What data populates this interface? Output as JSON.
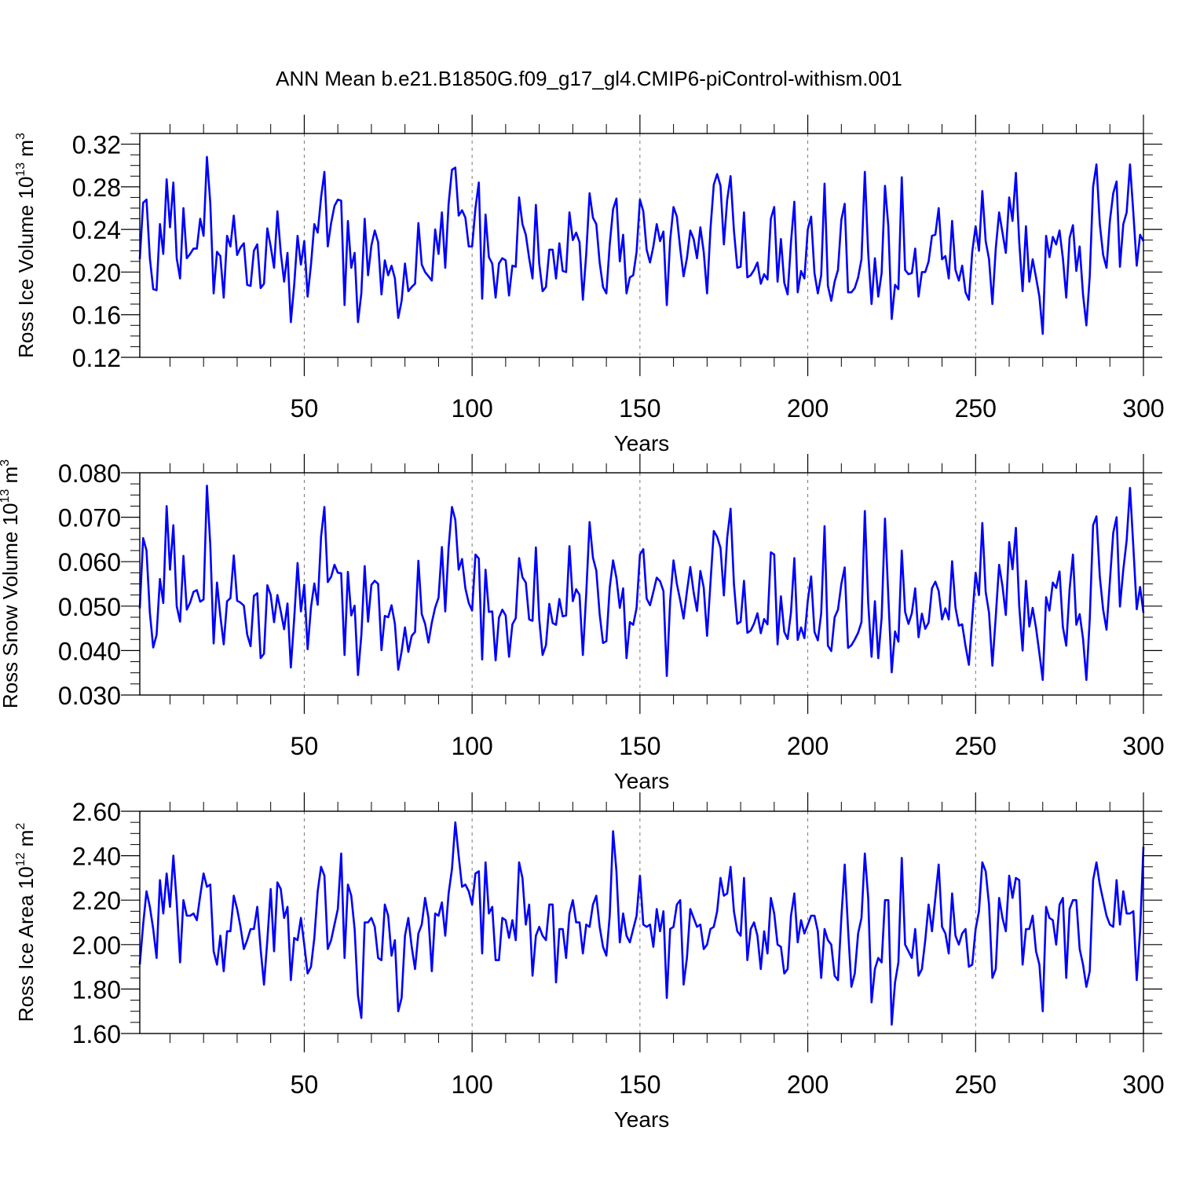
{
  "title": "ANN Mean b.e21.B1850G.f09_g17_gl4.CMIP6-piControl-withism.001",
  "chart_data": [
    {
      "type": "line",
      "xlabel": "Years",
      "ylabel_main": "Ross Ice Volume 10",
      "ylabel_exp": "13",
      "ylabel_unit": "m",
      "ylabel_unit_exp": "3",
      "xlim": [
        1,
        300
      ],
      "ylim": [
        0.12,
        0.33
      ],
      "xticks": [
        50,
        100,
        150,
        200,
        250,
        300
      ],
      "xtick_labels": [
        "50",
        "100",
        "150",
        "200",
        "250",
        "300"
      ],
      "yticks": [
        0.12,
        0.16,
        0.2,
        0.24,
        0.28,
        0.32
      ],
      "ytick_labels": [
        "0.12",
        "0.16",
        "0.20",
        "0.24",
        "0.28",
        "0.32"
      ],
      "grid": "dashed vertical at 50-year intervals",
      "color": "#0000ff",
      "values": [
        0.212,
        0.265,
        0.268,
        0.213,
        0.184,
        0.183,
        0.245,
        0.217,
        0.287,
        0.242,
        0.284,
        0.213,
        0.194,
        0.26,
        0.213,
        0.217,
        0.222,
        0.222,
        0.25,
        0.234,
        0.308,
        0.265,
        0.18,
        0.219,
        0.215,
        0.176,
        0.234,
        0.224,
        0.253,
        0.216,
        0.223,
        0.227,
        0.188,
        0.187,
        0.22,
        0.226,
        0.185,
        0.189,
        0.241,
        0.224,
        0.204,
        0.257,
        0.218,
        0.191,
        0.218,
        0.153,
        0.188,
        0.234,
        0.207,
        0.229,
        0.177,
        0.207,
        0.245,
        0.237,
        0.27,
        0.294,
        0.224,
        0.246,
        0.262,
        0.268,
        0.267,
        0.169,
        0.248,
        0.204,
        0.218,
        0.153,
        0.18,
        0.25,
        0.197,
        0.225,
        0.239,
        0.228,
        0.179,
        0.211,
        0.197,
        0.206,
        0.194,
        0.157,
        0.173,
        0.208,
        0.182,
        0.186,
        0.189,
        0.246,
        0.207,
        0.2,
        0.196,
        0.192,
        0.24,
        0.217,
        0.256,
        0.204,
        0.264,
        0.296,
        0.298,
        0.253,
        0.258,
        0.251,
        0.224,
        0.224,
        0.26,
        0.284,
        0.175,
        0.254,
        0.214,
        0.208,
        0.176,
        0.208,
        0.213,
        0.211,
        0.178,
        0.206,
        0.205,
        0.27,
        0.245,
        0.235,
        0.213,
        0.194,
        0.263,
        0.208,
        0.182,
        0.186,
        0.221,
        0.221,
        0.194,
        0.227,
        0.201,
        0.2,
        0.256,
        0.23,
        0.237,
        0.228,
        0.174,
        0.217,
        0.274,
        0.251,
        0.245,
        0.209,
        0.186,
        0.18,
        0.226,
        0.259,
        0.269,
        0.21,
        0.235,
        0.18,
        0.195,
        0.197,
        0.219,
        0.268,
        0.257,
        0.221,
        0.209,
        0.224,
        0.245,
        0.229,
        0.238,
        0.169,
        0.23,
        0.261,
        0.252,
        0.222,
        0.196,
        0.213,
        0.239,
        0.231,
        0.213,
        0.242,
        0.219,
        0.18,
        0.24,
        0.282,
        0.292,
        0.281,
        0.226,
        0.268,
        0.29,
        0.239,
        0.204,
        0.205,
        0.256,
        0.195,
        0.197,
        0.202,
        0.209,
        0.189,
        0.198,
        0.193,
        0.25,
        0.261,
        0.191,
        0.231,
        0.19,
        0.179,
        0.228,
        0.266,
        0.181,
        0.201,
        0.194,
        0.24,
        0.252,
        0.199,
        0.18,
        0.197,
        0.283,
        0.187,
        0.173,
        0.191,
        0.202,
        0.249,
        0.264,
        0.181,
        0.181,
        0.185,
        0.195,
        0.212,
        0.294,
        0.218,
        0.17,
        0.213,
        0.177,
        0.199,
        0.281,
        0.243,
        0.156,
        0.188,
        0.184,
        0.289,
        0.202,
        0.198,
        0.199,
        0.222,
        0.177,
        0.2,
        0.2,
        0.21,
        0.234,
        0.235,
        0.26,
        0.212,
        0.215,
        0.194,
        0.248,
        0.202,
        0.192,
        0.206,
        0.181,
        0.174,
        0.219,
        0.243,
        0.22,
        0.276,
        0.229,
        0.212,
        0.17,
        0.222,
        0.256,
        0.237,
        0.218,
        0.27,
        0.248,
        0.293,
        0.228,
        0.182,
        0.243,
        0.191,
        0.212,
        0.195,
        0.177,
        0.142,
        0.234,
        0.214,
        0.233,
        0.226,
        0.239,
        0.213,
        0.176,
        0.232,
        0.244,
        0.201,
        0.224,
        0.179,
        0.15,
        0.196,
        0.28,
        0.301,
        0.245,
        0.216,
        0.204,
        0.248,
        0.274,
        0.285,
        0.205,
        0.245,
        0.256,
        0.301,
        0.255,
        0.206,
        0.235,
        0.229
      ]
    },
    {
      "type": "line",
      "xlabel": "Years",
      "ylabel_main": "Ross Snow Volume 10",
      "ylabel_exp": "13",
      "ylabel_unit": "m",
      "ylabel_unit_exp": "3",
      "xlim": [
        1,
        300
      ],
      "ylim": [
        0.03,
        0.08
      ],
      "xticks": [
        50,
        100,
        150,
        200,
        250,
        300
      ],
      "xtick_labels": [
        "50",
        "100",
        "150",
        "200",
        "250",
        "300"
      ],
      "yticks": [
        0.03,
        0.04,
        0.05,
        0.06,
        0.07,
        0.08
      ],
      "ytick_labels": [
        "0.030",
        "0.040",
        "0.050",
        "0.060",
        "0.070",
        "0.080"
      ],
      "grid": "dashed vertical at 50-year intervals",
      "color": "#0000ff",
      "values": [
        0.0495,
        0.0653,
        0.0625,
        0.0485,
        0.0407,
        0.0435,
        0.0561,
        0.0507,
        0.0725,
        0.0582,
        0.0682,
        0.05,
        0.0465,
        0.0613,
        0.0492,
        0.0508,
        0.0532,
        0.0536,
        0.051,
        0.0515,
        0.0771,
        0.0638,
        0.0416,
        0.0553,
        0.0478,
        0.0414,
        0.0511,
        0.0518,
        0.0614,
        0.0512,
        0.0508,
        0.0501,
        0.0436,
        0.041,
        0.0523,
        0.0529,
        0.0383,
        0.0393,
        0.0547,
        0.0525,
        0.0464,
        0.0525,
        0.0488,
        0.0448,
        0.0506,
        0.0362,
        0.0472,
        0.0597,
        0.0488,
        0.0548,
        0.0403,
        0.0497,
        0.0551,
        0.0503,
        0.0656,
        0.0723,
        0.0554,
        0.0566,
        0.0593,
        0.0575,
        0.0574,
        0.039,
        0.0577,
        0.0479,
        0.0501,
        0.0345,
        0.0434,
        0.059,
        0.0465,
        0.0548,
        0.0557,
        0.055,
        0.0401,
        0.0478,
        0.0475,
        0.0502,
        0.046,
        0.0357,
        0.0398,
        0.0452,
        0.0397,
        0.0433,
        0.0442,
        0.0602,
        0.0482,
        0.046,
        0.0418,
        0.0463,
        0.0497,
        0.0519,
        0.0633,
        0.0488,
        0.0632,
        0.0723,
        0.0694,
        0.0582,
        0.0606,
        0.054,
        0.0507,
        0.049,
        0.0616,
        0.0607,
        0.038,
        0.0582,
        0.0487,
        0.0488,
        0.0378,
        0.0474,
        0.0492,
        0.0479,
        0.0386,
        0.0459,
        0.0473,
        0.0608,
        0.0565,
        0.0553,
        0.047,
        0.0467,
        0.0632,
        0.047,
        0.039,
        0.0412,
        0.0505,
        0.0462,
        0.0458,
        0.0516,
        0.0477,
        0.0479,
        0.0635,
        0.0511,
        0.0538,
        0.0525,
        0.039,
        0.0528,
        0.0689,
        0.0609,
        0.058,
        0.0482,
        0.0417,
        0.0421,
        0.0542,
        0.0603,
        0.0563,
        0.0496,
        0.054,
        0.0383,
        0.0464,
        0.0458,
        0.0496,
        0.0616,
        0.0628,
        0.0517,
        0.0502,
        0.0532,
        0.0564,
        0.0556,
        0.0534,
        0.0343,
        0.0512,
        0.0603,
        0.055,
        0.0513,
        0.0472,
        0.0533,
        0.0588,
        0.0531,
        0.0489,
        0.0579,
        0.0542,
        0.0433,
        0.0551,
        0.0669,
        0.0656,
        0.0631,
        0.0524,
        0.0654,
        0.0719,
        0.055,
        0.046,
        0.0465,
        0.0557,
        0.044,
        0.0445,
        0.0461,
        0.0484,
        0.0439,
        0.0471,
        0.0459,
        0.0621,
        0.0616,
        0.0414,
        0.0522,
        0.0442,
        0.0426,
        0.0486,
        0.0608,
        0.0424,
        0.0452,
        0.0428,
        0.0512,
        0.0567,
        0.0442,
        0.0423,
        0.0484,
        0.068,
        0.0411,
        0.0399,
        0.0475,
        0.0492,
        0.055,
        0.0587,
        0.0406,
        0.0412,
        0.0425,
        0.044,
        0.0464,
        0.0714,
        0.0508,
        0.0386,
        0.0511,
        0.0383,
        0.0474,
        0.0697,
        0.052,
        0.0351,
        0.0443,
        0.042,
        0.0625,
        0.0487,
        0.046,
        0.0484,
        0.054,
        0.043,
        0.0483,
        0.0449,
        0.0463,
        0.054,
        0.0555,
        0.0534,
        0.047,
        0.0495,
        0.047,
        0.0601,
        0.0497,
        0.0456,
        0.0459,
        0.041,
        0.0368,
        0.0472,
        0.0575,
        0.0525,
        0.0687,
        0.0532,
        0.0485,
        0.0366,
        0.0476,
        0.0593,
        0.0545,
        0.048,
        0.0644,
        0.0583,
        0.0676,
        0.0499,
        0.04,
        0.0557,
        0.0454,
        0.0496,
        0.0451,
        0.0394,
        0.0334,
        0.052,
        0.049,
        0.0553,
        0.0541,
        0.0578,
        0.0453,
        0.0411,
        0.0538,
        0.0616,
        0.0458,
        0.0482,
        0.0427,
        0.0334,
        0.047,
        0.0682,
        0.0702,
        0.0566,
        0.0492,
        0.0447,
        0.0556,
        0.0665,
        0.07,
        0.0499,
        0.0582,
        0.0648,
        0.0766,
        0.0632,
        0.0493,
        0.0543,
        0.0485
      ]
    },
    {
      "type": "line",
      "xlabel": "Years",
      "ylabel_main": "Ross Ice Area 10",
      "ylabel_exp": "12",
      "ylabel_unit": "m",
      "ylabel_unit_exp": "2",
      "xlim": [
        1,
        300
      ],
      "ylim": [
        1.6,
        2.6
      ],
      "xticks": [
        50,
        100,
        150,
        200,
        250,
        300
      ],
      "xtick_labels": [
        "50",
        "100",
        "150",
        "200",
        "250",
        "300"
      ],
      "yticks": [
        1.6,
        1.8,
        2.0,
        2.2,
        2.4,
        2.6
      ],
      "ytick_labels": [
        "1.60",
        "1.80",
        "2.00",
        "2.20",
        "2.40",
        "2.60"
      ],
      "grid": "dashed vertical at 50-year intervals",
      "color": "#0000ff",
      "values": [
        1.91,
        2.09,
        2.24,
        2.17,
        2.07,
        1.94,
        2.29,
        2.14,
        2.32,
        2.17,
        2.4,
        2.19,
        1.92,
        2.2,
        2.13,
        2.13,
        2.14,
        2.11,
        2.22,
        2.32,
        2.26,
        2.27,
        1.97,
        1.91,
        2.04,
        1.88,
        2.06,
        2.06,
        2.22,
        2.16,
        2.08,
        1.98,
        2.02,
        2.07,
        2.07,
        2.17,
        1.98,
        1.82,
        2.02,
        2.25,
        1.97,
        2.28,
        2.25,
        2.12,
        2.17,
        1.84,
        2.03,
        2.02,
        2.12,
        2.0,
        1.87,
        1.9,
        2.03,
        2.24,
        2.35,
        2.31,
        1.98,
        2.02,
        2.09,
        2.16,
        2.41,
        1.94,
        2.27,
        2.22,
        2.07,
        1.77,
        1.67,
        2.1,
        2.1,
        2.12,
        2.08,
        1.94,
        1.93,
        2.18,
        2.13,
        1.95,
        2.02,
        1.7,
        1.76,
        2.04,
        2.12,
        1.99,
        1.89,
        2.05,
        2.09,
        2.21,
        2.12,
        1.88,
        2.14,
        2.13,
        2.19,
        2.04,
        2.23,
        2.34,
        2.55,
        2.4,
        2.26,
        2.27,
        2.24,
        2.18,
        2.32,
        2.33,
        1.96,
        2.37,
        2.14,
        2.17,
        1.93,
        1.93,
        2.12,
        2.11,
        2.03,
        2.11,
        2.02,
        2.37,
        2.3,
        2.09,
        2.18,
        1.86,
        2.04,
        2.08,
        2.04,
        2.02,
        2.18,
        2.18,
        1.83,
        2.07,
        2.07,
        1.94,
        2.14,
        2.2,
        2.1,
        2.1,
        1.96,
        2.09,
        2.08,
        2.18,
        2.22,
        2.08,
        1.99,
        1.95,
        2.13,
        2.51,
        2.33,
        2.01,
        2.14,
        2.04,
        2.01,
        2.07,
        2.13,
        2.31,
        2.09,
        2.08,
        2.09,
        1.99,
        2.16,
        2.06,
        2.15,
        1.76,
        2.07,
        2.08,
        2.18,
        2.2,
        1.82,
        1.94,
        2.16,
        2.12,
        2.08,
        2.09,
        1.98,
        2.0,
        2.07,
        2.08,
        2.15,
        2.3,
        2.22,
        2.23,
        2.35,
        2.15,
        2.06,
        2.04,
        2.3,
        1.93,
        2.07,
        2.1,
        2.04,
        1.89,
        2.06,
        1.96,
        2.21,
        2.14,
        2.0,
        1.99,
        1.87,
        1.89,
        2.13,
        2.23,
        2.01,
        2.11,
        2.05,
        2.09,
        2.13,
        2.13,
        2.06,
        1.85,
        2.07,
        2.02,
        2.0,
        1.86,
        1.84,
        2.12,
        2.36,
        2.07,
        1.81,
        1.87,
        2.05,
        2.12,
        2.41,
        2.21,
        1.74,
        1.89,
        1.94,
        1.92,
        2.2,
        2.2,
        1.64,
        1.83,
        1.92,
        2.39,
        2.0,
        1.97,
        1.94,
        2.07,
        1.86,
        1.89,
        2.02,
        2.18,
        2.06,
        2.21,
        2.36,
        2.08,
        2.05,
        1.96,
        2.23,
        2.04,
        2.0,
        2.05,
        2.07,
        1.9,
        1.91,
        2.07,
        2.15,
        2.37,
        2.33,
        2.18,
        1.85,
        1.89,
        2.21,
        2.12,
        2.06,
        2.31,
        2.21,
        2.3,
        2.29,
        1.91,
        2.07,
        2.07,
        2.13,
        1.97,
        1.91,
        1.7,
        2.17,
        2.12,
        2.11,
        2.0,
        2.18,
        2.21,
        1.85,
        2.16,
        2.2,
        2.2,
        1.98,
        1.91,
        1.81,
        1.88,
        2.29,
        2.37,
        2.27,
        2.2,
        2.13,
        2.09,
        2.08,
        2.29,
        2.09,
        2.24,
        2.14,
        2.14,
        2.15,
        1.84,
        2.06,
        2.44
      ]
    }
  ]
}
